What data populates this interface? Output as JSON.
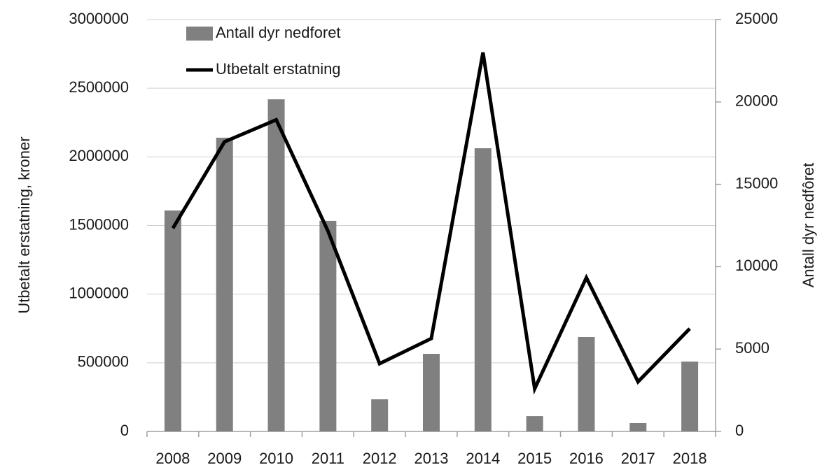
{
  "chart_data": {
    "type": "bar_line",
    "categories": [
      "2008",
      "2009",
      "2010",
      "2011",
      "2012",
      "2013",
      "2014",
      "2015",
      "2016",
      "2017",
      "2018"
    ],
    "series": [
      {
        "name": "Antall dyr nedforet",
        "type": "bar",
        "axis": "y2",
        "color": "#808080",
        "values": [
          13410,
          17830,
          20160,
          12780,
          1950,
          4710,
          17190,
          930,
          5730,
          510,
          4240
        ]
      },
      {
        "name": "Utbetalt erstatning",
        "type": "line",
        "axis": "y",
        "color": "#000000",
        "values": [
          1480000,
          2110000,
          2270000,
          1460000,
          494000,
          677000,
          2760000,
          311000,
          1120000,
          362000,
          749000
        ]
      }
    ],
    "ylabel": "Utbetalt erstatning, kroner",
    "y2label": "Antall dyr nedfôret",
    "ylim": [
      0,
      3000000
    ],
    "yticks": [
      0,
      500000,
      1000000,
      1500000,
      2000000,
      2500000,
      3000000
    ],
    "y2lim": [
      0,
      25000
    ],
    "y2ticks": [
      0,
      5000,
      10000,
      15000,
      20000,
      25000
    ],
    "grid": true,
    "legend": "top-left"
  }
}
